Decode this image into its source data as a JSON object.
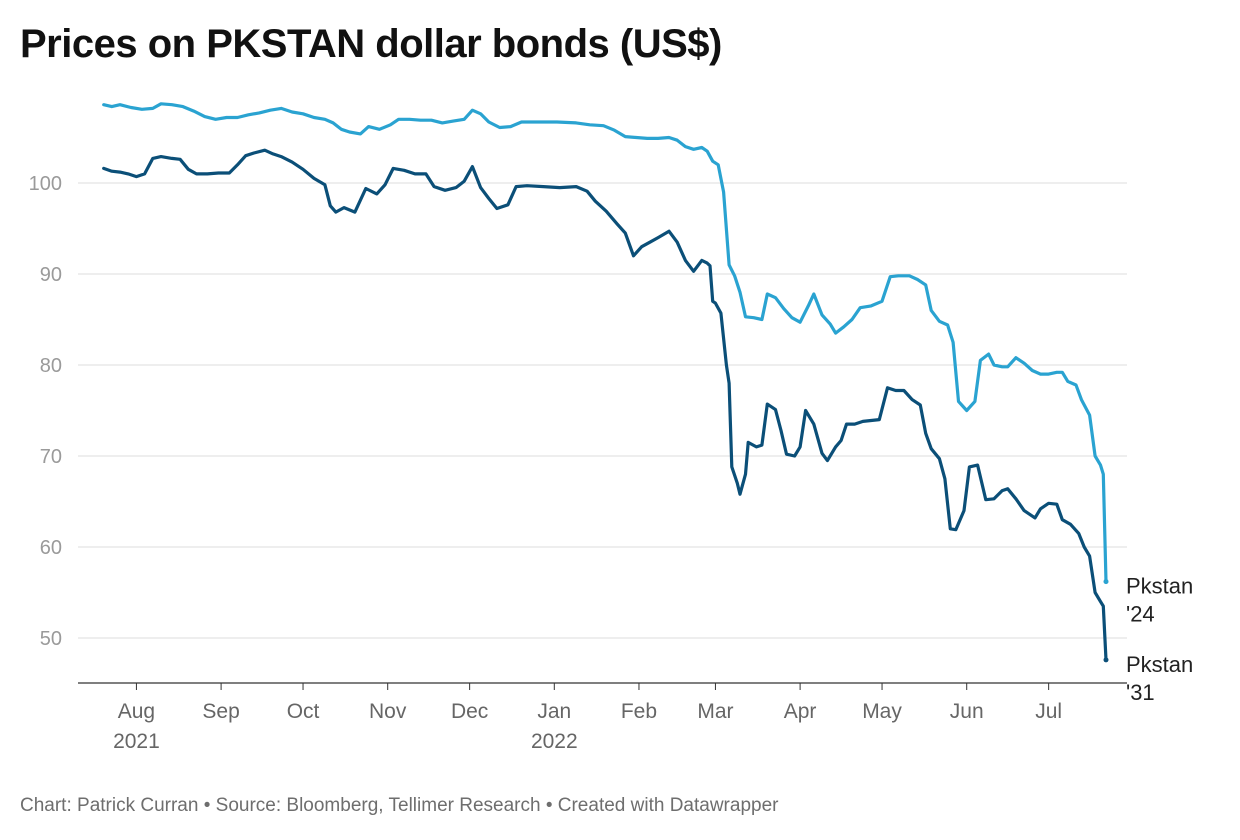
{
  "chart_data": {
    "type": "line",
    "title": "Prices on PKSTAN dollar bonds (US$)",
    "footer": "Chart: Patrick Curran • Source: Bloomberg, Tellimer Research • Created with Datawrapper",
    "xlabel": "",
    "ylabel": "",
    "x_range": [
      "2021-07-15",
      "2022-07-22"
    ],
    "ylim": [
      45,
      110
    ],
    "yticks": [
      50,
      60,
      70,
      80,
      90,
      100
    ],
    "grid": "horizontal",
    "legend": "direct labels at line ends",
    "x_ticks": [
      {
        "date": "2021-08-01",
        "line1": "Aug",
        "line2": "2021"
      },
      {
        "date": "2021-09-01",
        "line1": "Sep",
        "line2": ""
      },
      {
        "date": "2021-10-01",
        "line1": "Oct",
        "line2": ""
      },
      {
        "date": "2021-11-01",
        "line1": "Nov",
        "line2": ""
      },
      {
        "date": "2021-12-01",
        "line1": "Dec",
        "line2": ""
      },
      {
        "date": "2022-01-01",
        "line1": "Jan",
        "line2": "2022"
      },
      {
        "date": "2022-02-01",
        "line1": "Feb",
        "line2": ""
      },
      {
        "date": "2022-03-01",
        "line1": "Mar",
        "line2": ""
      },
      {
        "date": "2022-04-01",
        "line1": "Apr",
        "line2": ""
      },
      {
        "date": "2022-05-01",
        "line1": "May",
        "line2": ""
      },
      {
        "date": "2022-06-01",
        "line1": "Jun",
        "line2": ""
      },
      {
        "date": "2022-07-01",
        "line1": "Jul",
        "line2": ""
      }
    ],
    "series": [
      {
        "name": "Pkstan '24",
        "label_lines": [
          "Pkstan",
          "'24"
        ],
        "color": "#2aa3d1",
        "points": [
          [
            "2021-07-20",
            108.6
          ],
          [
            "2021-07-23",
            108.4
          ],
          [
            "2021-07-26",
            108.6
          ],
          [
            "2021-07-30",
            108.3
          ],
          [
            "2021-08-03",
            108.1
          ],
          [
            "2021-08-07",
            108.2
          ],
          [
            "2021-08-10",
            108.7
          ],
          [
            "2021-08-14",
            108.6
          ],
          [
            "2021-08-18",
            108.4
          ],
          [
            "2021-08-22",
            107.9
          ],
          [
            "2021-08-26",
            107.3
          ],
          [
            "2021-08-30",
            107.0
          ],
          [
            "2021-09-03",
            107.2
          ],
          [
            "2021-09-07",
            107.2
          ],
          [
            "2021-09-11",
            107.5
          ],
          [
            "2021-09-15",
            107.7
          ],
          [
            "2021-09-19",
            108.0
          ],
          [
            "2021-09-23",
            108.2
          ],
          [
            "2021-09-27",
            107.8
          ],
          [
            "2021-10-01",
            107.6
          ],
          [
            "2021-10-05",
            107.2
          ],
          [
            "2021-10-09",
            107.0
          ],
          [
            "2021-10-12",
            106.6
          ],
          [
            "2021-10-15",
            105.9
          ],
          [
            "2021-10-18",
            105.6
          ],
          [
            "2021-10-22",
            105.4
          ],
          [
            "2021-10-25",
            106.2
          ],
          [
            "2021-10-29",
            105.9
          ],
          [
            "2021-11-02",
            106.4
          ],
          [
            "2021-11-05",
            107.0
          ],
          [
            "2021-11-09",
            107.0
          ],
          [
            "2021-11-13",
            106.9
          ],
          [
            "2021-11-17",
            106.9
          ],
          [
            "2021-11-21",
            106.6
          ],
          [
            "2021-11-25",
            106.8
          ],
          [
            "2021-11-29",
            107.0
          ],
          [
            "2021-12-02",
            108.0
          ],
          [
            "2021-12-05",
            107.6
          ],
          [
            "2021-12-08",
            106.7
          ],
          [
            "2021-12-12",
            106.1
          ],
          [
            "2021-12-16",
            106.2
          ],
          [
            "2021-12-20",
            106.7
          ],
          [
            "2021-12-26",
            106.7
          ],
          [
            "2022-01-02",
            106.7
          ],
          [
            "2022-01-09",
            106.6
          ],
          [
            "2022-01-14",
            106.4
          ],
          [
            "2022-01-19",
            106.3
          ],
          [
            "2022-01-23",
            105.8
          ],
          [
            "2022-01-27",
            105.1
          ],
          [
            "2022-01-31",
            105.0
          ],
          [
            "2022-02-04",
            104.9
          ],
          [
            "2022-02-08",
            104.9
          ],
          [
            "2022-02-12",
            105.0
          ],
          [
            "2022-02-15",
            104.7
          ],
          [
            "2022-02-18",
            104.0
          ],
          [
            "2022-02-21",
            103.7
          ],
          [
            "2022-02-24",
            103.9
          ],
          [
            "2022-02-26",
            103.5
          ],
          [
            "2022-02-28",
            102.4
          ],
          [
            "2022-03-02",
            102.0
          ],
          [
            "2022-03-04",
            99.0
          ],
          [
            "2022-03-06",
            91.0
          ],
          [
            "2022-03-08",
            89.8
          ],
          [
            "2022-03-10",
            88.0
          ],
          [
            "2022-03-12",
            85.3
          ],
          [
            "2022-03-15",
            85.2
          ],
          [
            "2022-03-18",
            85.0
          ],
          [
            "2022-03-20",
            87.8
          ],
          [
            "2022-03-23",
            87.4
          ],
          [
            "2022-03-26",
            86.2
          ],
          [
            "2022-03-29",
            85.2
          ],
          [
            "2022-04-01",
            84.7
          ],
          [
            "2022-04-04",
            86.5
          ],
          [
            "2022-04-06",
            87.8
          ],
          [
            "2022-04-09",
            85.5
          ],
          [
            "2022-04-12",
            84.5
          ],
          [
            "2022-04-14",
            83.5
          ],
          [
            "2022-04-17",
            84.2
          ],
          [
            "2022-04-20",
            85.0
          ],
          [
            "2022-04-23",
            86.3
          ],
          [
            "2022-04-27",
            86.5
          ],
          [
            "2022-05-01",
            87.0
          ],
          [
            "2022-05-04",
            89.7
          ],
          [
            "2022-05-07",
            89.8
          ],
          [
            "2022-05-11",
            89.8
          ],
          [
            "2022-05-14",
            89.4
          ],
          [
            "2022-05-17",
            88.8
          ],
          [
            "2022-05-19",
            86.0
          ],
          [
            "2022-05-22",
            84.8
          ],
          [
            "2022-05-25",
            84.4
          ],
          [
            "2022-05-27",
            82.5
          ],
          [
            "2022-05-29",
            76.0
          ],
          [
            "2022-06-01",
            75.0
          ],
          [
            "2022-06-04",
            76.0
          ],
          [
            "2022-06-06",
            80.5
          ],
          [
            "2022-06-09",
            81.2
          ],
          [
            "2022-06-11",
            80.0
          ],
          [
            "2022-06-14",
            79.8
          ],
          [
            "2022-06-16",
            79.8
          ],
          [
            "2022-06-19",
            80.8
          ],
          [
            "2022-06-22",
            80.2
          ],
          [
            "2022-06-25",
            79.4
          ],
          [
            "2022-06-28",
            79.0
          ],
          [
            "2022-07-01",
            79.0
          ],
          [
            "2022-07-04",
            79.2
          ],
          [
            "2022-07-06",
            79.2
          ],
          [
            "2022-07-08",
            78.2
          ],
          [
            "2022-07-11",
            77.8
          ],
          [
            "2022-07-13",
            76.2
          ],
          [
            "2022-07-16",
            74.5
          ],
          [
            "2022-07-18",
            70.0
          ],
          [
            "2022-07-20",
            69.0
          ],
          [
            "2022-07-21",
            68.0
          ],
          [
            "2022-07-22",
            56.2
          ]
        ]
      },
      {
        "name": "Pkstan '31",
        "label_lines": [
          "Pkstan",
          "'31"
        ],
        "color": "#0b4f78",
        "points": [
          [
            "2021-07-20",
            101.6
          ],
          [
            "2021-07-23",
            101.3
          ],
          [
            "2021-07-26",
            101.2
          ],
          [
            "2021-07-29",
            101.0
          ],
          [
            "2021-08-01",
            100.7
          ],
          [
            "2021-08-04",
            101.0
          ],
          [
            "2021-08-07",
            102.7
          ],
          [
            "2021-08-10",
            102.9
          ],
          [
            "2021-08-14",
            102.7
          ],
          [
            "2021-08-17",
            102.6
          ],
          [
            "2021-08-20",
            101.5
          ],
          [
            "2021-08-23",
            101.0
          ],
          [
            "2021-08-27",
            101.0
          ],
          [
            "2021-08-31",
            101.1
          ],
          [
            "2021-09-04",
            101.1
          ],
          [
            "2021-09-07",
            102.0
          ],
          [
            "2021-09-10",
            103.0
          ],
          [
            "2021-09-13",
            103.3
          ],
          [
            "2021-09-17",
            103.6
          ],
          [
            "2021-09-20",
            103.2
          ],
          [
            "2021-09-23",
            102.9
          ],
          [
            "2021-09-27",
            102.3
          ],
          [
            "2021-10-01",
            101.5
          ],
          [
            "2021-10-05",
            100.5
          ],
          [
            "2021-10-09",
            99.8
          ],
          [
            "2021-10-11",
            97.5
          ],
          [
            "2021-10-13",
            96.8
          ],
          [
            "2021-10-16",
            97.3
          ],
          [
            "2021-10-20",
            96.8
          ],
          [
            "2021-10-24",
            99.4
          ],
          [
            "2021-10-28",
            98.8
          ],
          [
            "2021-10-31",
            99.8
          ],
          [
            "2021-11-03",
            101.6
          ],
          [
            "2021-11-07",
            101.4
          ],
          [
            "2021-11-11",
            101.0
          ],
          [
            "2021-11-15",
            101.0
          ],
          [
            "2021-11-18",
            99.6
          ],
          [
            "2021-11-22",
            99.2
          ],
          [
            "2021-11-26",
            99.5
          ],
          [
            "2021-11-29",
            100.2
          ],
          [
            "2021-12-02",
            101.8
          ],
          [
            "2021-12-05",
            99.5
          ],
          [
            "2021-12-08",
            98.3
          ],
          [
            "2021-12-11",
            97.2
          ],
          [
            "2021-12-15",
            97.6
          ],
          [
            "2021-12-18",
            99.6
          ],
          [
            "2021-12-22",
            99.7
          ],
          [
            "2021-12-28",
            99.6
          ],
          [
            "2022-01-03",
            99.5
          ],
          [
            "2022-01-09",
            99.6
          ],
          [
            "2022-01-13",
            99.1
          ],
          [
            "2022-01-16",
            98.0
          ],
          [
            "2022-01-20",
            96.9
          ],
          [
            "2022-01-24",
            95.5
          ],
          [
            "2022-01-27",
            94.5
          ],
          [
            "2022-01-30",
            92.0
          ],
          [
            "2022-02-02",
            93.0
          ],
          [
            "2022-02-05",
            93.5
          ],
          [
            "2022-02-08",
            94.0
          ],
          [
            "2022-02-12",
            94.7
          ],
          [
            "2022-02-15",
            93.5
          ],
          [
            "2022-02-18",
            91.5
          ],
          [
            "2022-02-21",
            90.3
          ],
          [
            "2022-02-24",
            91.5
          ],
          [
            "2022-02-26",
            91.2
          ],
          [
            "2022-02-27",
            90.9
          ],
          [
            "2022-02-28",
            87.0
          ],
          [
            "2022-03-01",
            86.8
          ],
          [
            "2022-03-03",
            85.7
          ],
          [
            "2022-03-05",
            80.0
          ],
          [
            "2022-03-06",
            78.0
          ],
          [
            "2022-03-07",
            68.8
          ],
          [
            "2022-03-09",
            67.0
          ],
          [
            "2022-03-10",
            65.8
          ],
          [
            "2022-03-12",
            68.0
          ],
          [
            "2022-03-13",
            71.5
          ],
          [
            "2022-03-16",
            71.0
          ],
          [
            "2022-03-18",
            71.2
          ],
          [
            "2022-03-20",
            75.7
          ],
          [
            "2022-03-23",
            75.1
          ],
          [
            "2022-03-25",
            72.8
          ],
          [
            "2022-03-27",
            70.2
          ],
          [
            "2022-03-30",
            70.0
          ],
          [
            "2022-04-01",
            71.0
          ],
          [
            "2022-04-03",
            75.0
          ],
          [
            "2022-04-06",
            73.5
          ],
          [
            "2022-04-09",
            70.3
          ],
          [
            "2022-04-11",
            69.5
          ],
          [
            "2022-04-14",
            71.0
          ],
          [
            "2022-04-16",
            71.7
          ],
          [
            "2022-04-18",
            73.5
          ],
          [
            "2022-04-21",
            73.5
          ],
          [
            "2022-04-24",
            73.8
          ],
          [
            "2022-04-27",
            73.9
          ],
          [
            "2022-04-30",
            74.0
          ],
          [
            "2022-05-03",
            77.5
          ],
          [
            "2022-05-06",
            77.2
          ],
          [
            "2022-05-09",
            77.2
          ],
          [
            "2022-05-12",
            76.2
          ],
          [
            "2022-05-15",
            75.6
          ],
          [
            "2022-05-17",
            72.5
          ],
          [
            "2022-05-19",
            70.8
          ],
          [
            "2022-05-22",
            69.7
          ],
          [
            "2022-05-24",
            67.5
          ],
          [
            "2022-05-26",
            62.0
          ],
          [
            "2022-05-28",
            61.9
          ],
          [
            "2022-05-31",
            64.0
          ],
          [
            "2022-06-02",
            68.8
          ],
          [
            "2022-06-05",
            69.0
          ],
          [
            "2022-06-08",
            65.2
          ],
          [
            "2022-06-11",
            65.3
          ],
          [
            "2022-06-14",
            66.2
          ],
          [
            "2022-06-16",
            66.4
          ],
          [
            "2022-06-19",
            65.3
          ],
          [
            "2022-06-22",
            64.0
          ],
          [
            "2022-06-26",
            63.2
          ],
          [
            "2022-06-28",
            64.2
          ],
          [
            "2022-07-01",
            64.8
          ],
          [
            "2022-07-04",
            64.7
          ],
          [
            "2022-07-06",
            63.0
          ],
          [
            "2022-07-09",
            62.5
          ],
          [
            "2022-07-12",
            61.5
          ],
          [
            "2022-07-14",
            60.0
          ],
          [
            "2022-07-16",
            59.0
          ],
          [
            "2022-07-18",
            55.0
          ],
          [
            "2022-07-20",
            54.0
          ],
          [
            "2022-07-21",
            53.5
          ],
          [
            "2022-07-22",
            47.6
          ]
        ]
      }
    ]
  }
}
